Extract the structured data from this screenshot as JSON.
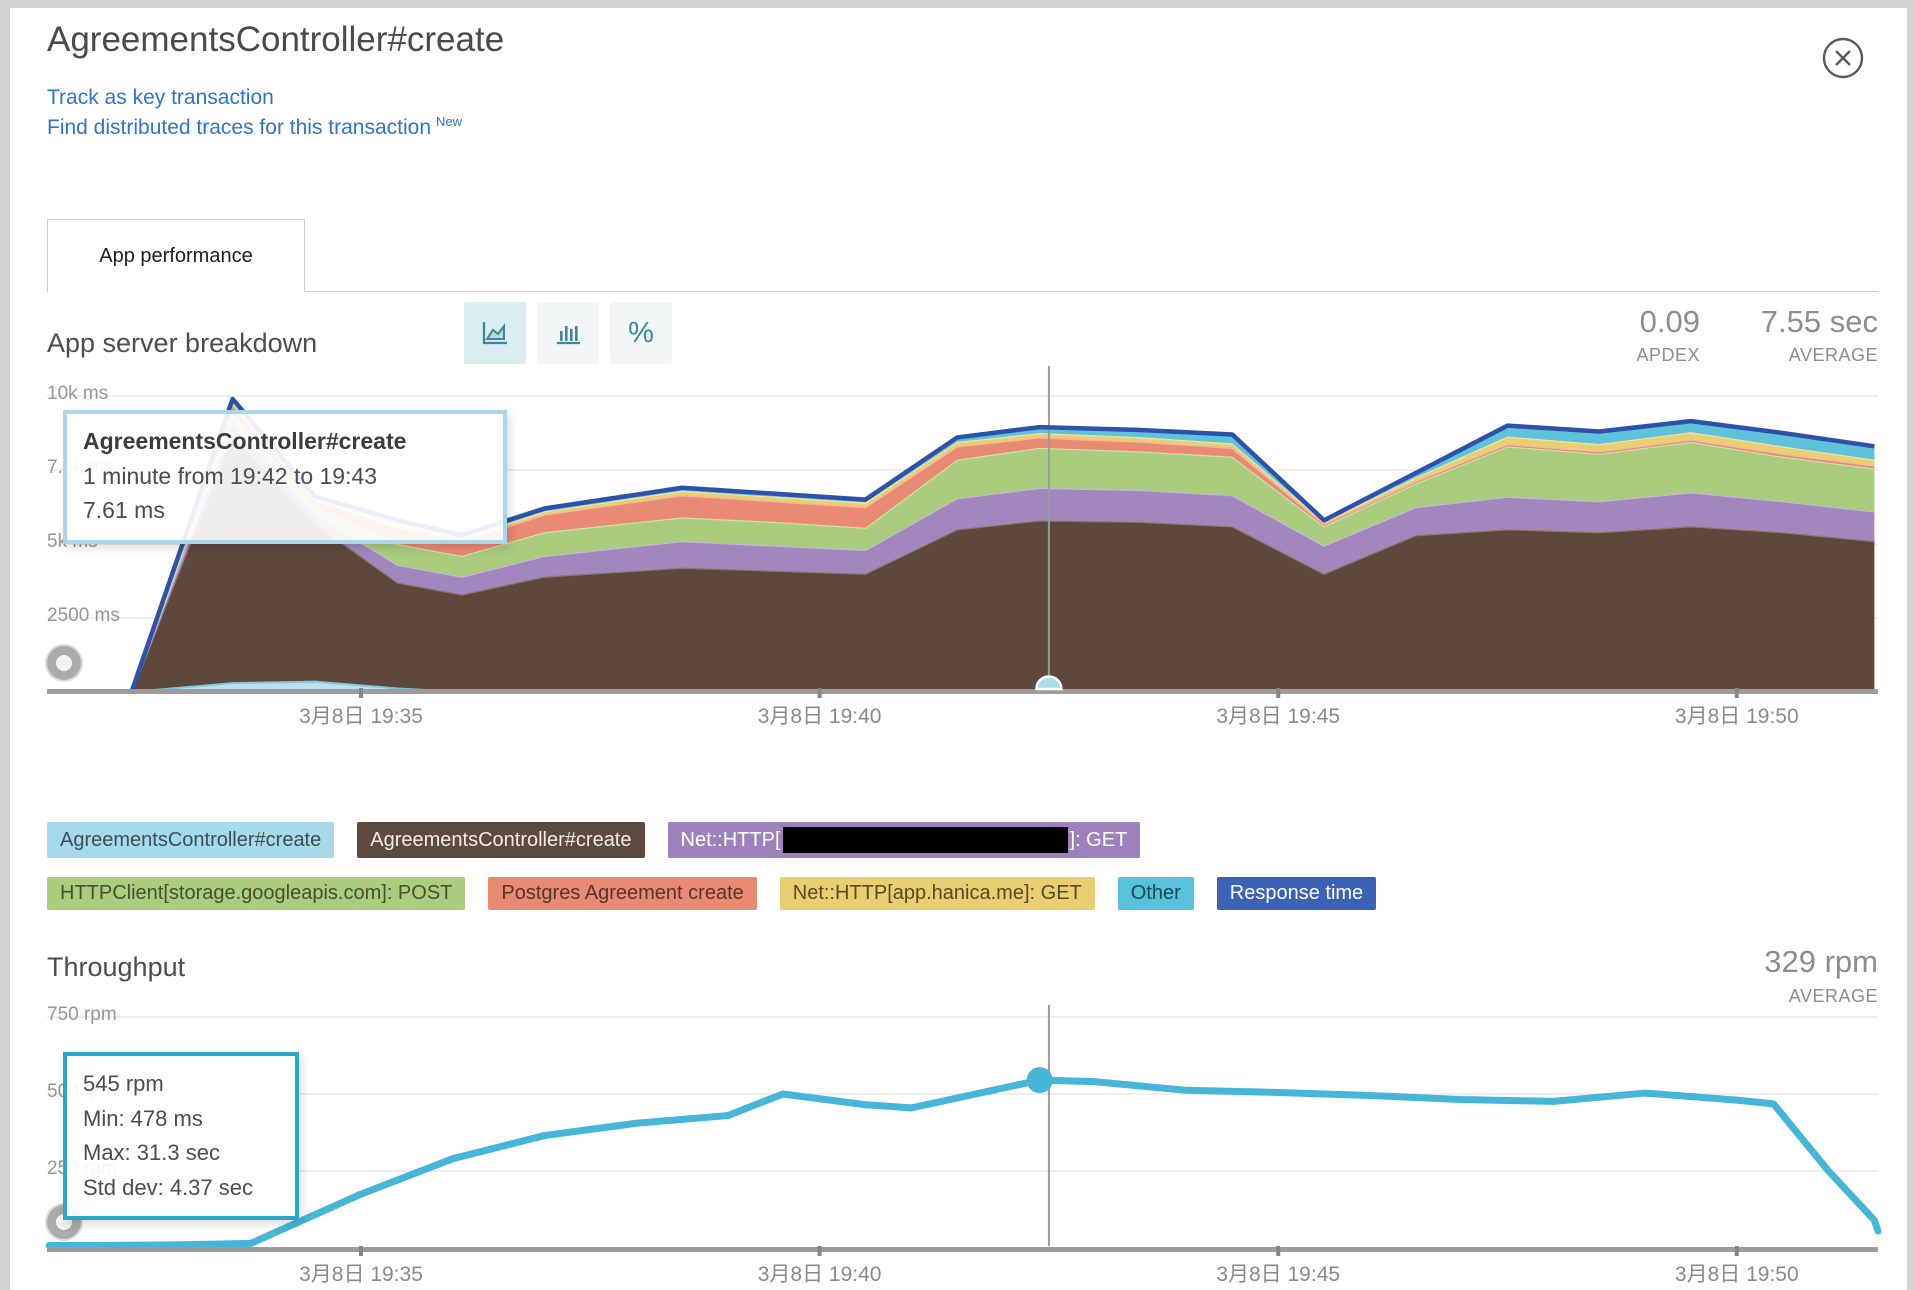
{
  "header": {
    "title": "AgreementsController#create",
    "link_track": "Track as key transaction",
    "link_traces": "Find distributed traces for this transaction",
    "link_traces_badge": "New"
  },
  "tabs": {
    "app_performance": "App performance"
  },
  "breakdown": {
    "title": "App server breakdown",
    "apdex_value": "0.09",
    "apdex_label": "APDEX",
    "avg_value": "7.55 sec",
    "avg_label": "AVERAGE",
    "tooltip": {
      "title": "AgreementsController#create",
      "range": "1 minute from 19:42 to 19:43",
      "value": "7.61 ms"
    }
  },
  "throughput": {
    "title": "Throughput",
    "avg_value": "329 rpm",
    "avg_label": "AVERAGE",
    "tooltip": {
      "line1": "545 rpm",
      "line2": "Min: 478 ms",
      "line3": "Max: 31.3 sec",
      "line4": "Std dev: 4.37 sec"
    }
  },
  "legend": {
    "rows": [
      [
        {
          "label": "AgreementsController#create",
          "bg": "#a6d9e9",
          "fg": "#3f4d55"
        },
        {
          "label": "AgreementsController#create",
          "bg": "#5d493e",
          "fg": "#f2ece7"
        },
        {
          "prefix": "Net::HTTP[",
          "suffix": "]: GET",
          "redacted": true,
          "bg": "#9e81bb",
          "fg": "#ffffff"
        }
      ],
      [
        {
          "label": "HTTPClient[storage.googleapis.com]: POST",
          "bg": "#aacd7e",
          "fg": "#46502f"
        },
        {
          "label": "Postgres Agreement create",
          "bg": "#e98a73",
          "fg": "#57342b"
        },
        {
          "label": "Net::HTTP[app.hanica.me]: GET",
          "bg": "#eace72",
          "fg": "#554a23"
        },
        {
          "label": "Other",
          "bg": "#57c2d9",
          "fg": "#124a5a"
        },
        {
          "label": "Response time",
          "bg": "#3c62b6",
          "fg": "#ffffff"
        }
      ]
    ]
  },
  "chart_data": [
    {
      "type": "area",
      "stacked": true,
      "title": "App server breakdown",
      "unit": "ms",
      "x_unit": "minutes after 19:30 (Mar 8)",
      "x": [
        1.6,
        2.5,
        3.6,
        4.5,
        5.4,
        6.1,
        7,
        8.5,
        9.5,
        10.5,
        11.5,
        12.4,
        13.5,
        14.5,
        15.5,
        16.5,
        17.5,
        18.5,
        19.5,
        20.5,
        21.5
      ],
      "series": [
        {
          "name": "AgreementsController#create (app)",
          "color": "#5e483c",
          "edge": "#907667",
          "values": [
            10,
            10,
            8700,
            5700,
            3700,
            3300,
            3900,
            4200,
            4100,
            4000,
            5500,
            5800,
            5750,
            5600,
            4000,
            5300,
            5500,
            5400,
            5600,
            5400,
            5100
          ]
        },
        {
          "name": "Net::HTTP[redacted]: GET",
          "color": "#a287be",
          "edge": "#c6b5d9",
          "values": [
            3,
            3,
            400,
            300,
            600,
            600,
            700,
            900,
            850,
            800,
            1050,
            1100,
            1080,
            1050,
            950,
            950,
            1100,
            1050,
            1150,
            1050,
            1000
          ]
        },
        {
          "name": "HTTPClient[storage.googleapis.com]: POST",
          "color": "#a9cc7d",
          "edge": "#cbe2a6",
          "values": [
            3,
            3,
            300,
            250,
            700,
            700,
            800,
            800,
            800,
            750,
            1300,
            1350,
            1300,
            1300,
            650,
            800,
            1700,
            1600,
            1700,
            1500,
            1450
          ]
        },
        {
          "name": "Postgres Agreement create",
          "color": "#e98a73",
          "edge": "#f4b6a7",
          "values": [
            2,
            2,
            300,
            250,
            550,
            500,
            600,
            750,
            700,
            700,
            450,
            350,
            330,
            300,
            80,
            80,
            80,
            80,
            80,
            100,
            100
          ]
        },
        {
          "name": "Net::HTTP[app.hanica.me]: GET",
          "color": "#eace72",
          "edge": "#f3e1a2",
          "values": [
            1,
            1,
            100,
            50,
            150,
            100,
            100,
            150,
            150,
            150,
            150,
            150,
            150,
            150,
            70,
            120,
            250,
            250,
            250,
            250,
            200
          ]
        },
        {
          "name": "Other",
          "color": "#5ec2da",
          "edge": "#a5deeb",
          "values": [
            1,
            1,
            100,
            50,
            100,
            100,
            100,
            100,
            100,
            100,
            150,
            200,
            240,
            300,
            50,
            150,
            370,
            420,
            370,
            450,
            450
          ]
        }
      ],
      "overlay_series": {
        "name": "AgreementsController#create (front)",
        "color": "#b9e1ef",
        "edge": "#82c5dd",
        "values": [
          0,
          0,
          300,
          350,
          120,
          0,
          0,
          0,
          0,
          0,
          0,
          0,
          0,
          0,
          0,
          0,
          0,
          0,
          0,
          0,
          0
        ]
      },
      "response_line": {
        "name": "Response time",
        "color": "#2d52a9"
      },
      "y_ticks": [
        {
          "label": "10k ms",
          "value": 10000
        },
        {
          "label": "7.5k ms",
          "value": 7500
        },
        {
          "label": "5k ms",
          "value": 5000
        },
        {
          "label": "2500 ms",
          "value": 2500
        }
      ],
      "x_ticks": [
        {
          "label": "3月8日 19:35",
          "t": 5
        },
        {
          "label": "3月8日 19:40",
          "t": 10
        },
        {
          "label": "3月8日 19:45",
          "t": 15
        },
        {
          "label": "3月8日 19:50",
          "t": 20
        }
      ],
      "ylim": [
        0,
        11000
      ],
      "crosshair_t": 12.5
    },
    {
      "type": "line",
      "title": "Throughput",
      "unit": "rpm",
      "color": "#45b6d8",
      "x": [
        1.6,
        2,
        3,
        3.8,
        5,
        6,
        7,
        8,
        9,
        9.6,
        10.5,
        11,
        12.4,
        13,
        14,
        15,
        16,
        17,
        18,
        19,
        20,
        20.4,
        21,
        21.5,
        21.7
      ],
      "values": [
        8,
        8,
        10,
        15,
        175,
        290,
        365,
        405,
        430,
        500,
        465,
        455,
        545,
        540,
        512,
        505,
        495,
        482,
        476,
        503,
        480,
        468,
        250,
        90,
        55
      ],
      "selected_point": {
        "t": 12.4,
        "value": 545
      },
      "y_ticks": [
        {
          "label": "750 rpm",
          "value": 750
        },
        {
          "label": "500 rpm",
          "value": 500
        },
        {
          "label": "250 rpm",
          "value": 250
        }
      ],
      "x_ticks": [
        {
          "label": "3月8日 19:35",
          "t": 5
        },
        {
          "label": "3月8日 19:40",
          "t": 10
        },
        {
          "label": "3月8日 19:45",
          "t": 15
        },
        {
          "label": "3月8日 19:50",
          "t": 20
        }
      ],
      "ylim": [
        0,
        780
      ],
      "crosshair_t": 12.5
    }
  ]
}
